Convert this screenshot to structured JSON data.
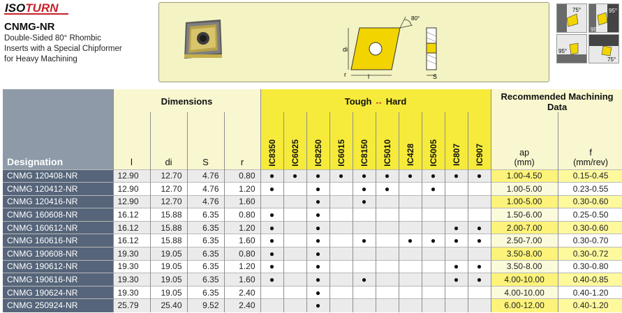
{
  "brand": "ISOTURN",
  "product": {
    "code": "CNMG-NR",
    "description_lines": [
      "Double-Sided 80° Rhombic",
      "Inserts with a Special Chipformer",
      "for Heavy Machining"
    ]
  },
  "diagram": {
    "angle_label": "80°",
    "dim_di": "di",
    "dim_l": "l",
    "dim_r": "r",
    "dim_s": "S"
  },
  "applications": [
    "75°",
    "95°",
    "95°",
    "95°",
    "75°"
  ],
  "table": {
    "designation_header": "Designation",
    "dimensions_title": "Dimensions",
    "dimension_headers": [
      "l",
      "di",
      "S",
      "r"
    ],
    "grade_title_left": "Tough",
    "grade_title_arrow": "↔",
    "grade_title_right": "Hard",
    "grades": [
      "IC8350",
      "IC6025",
      "IC8250",
      "IC6015",
      "IC8150",
      "IC5010",
      "IC428",
      "IC5005",
      "IC807",
      "IC907"
    ],
    "rec_title": "Recommended Machining Data",
    "rec_ap_label": "ap",
    "rec_ap_unit": "(mm)",
    "rec_f_label": "f",
    "rec_f_unit": "(mm/rev)",
    "rows": [
      {
        "designation": "CNMG 120408-NR",
        "l": "12.90",
        "di": "12.70",
        "s": "4.76",
        "r": "0.80",
        "grades": [
          "●",
          "●",
          "●",
          "●",
          "●",
          "●",
          "●",
          "●",
          "●",
          "●"
        ],
        "ap": "1.00-4.50",
        "f": "0.15-0.45"
      },
      {
        "designation": "CNMG 120412-NR",
        "l": "12.90",
        "di": "12.70",
        "s": "4.76",
        "r": "1.20",
        "grades": [
          "●",
          "",
          "●",
          "",
          "●",
          "●",
          "",
          "●",
          "",
          ""
        ],
        "ap": "1.00-5.00",
        "f": "0.23-0.55"
      },
      {
        "designation": "CNMG 120416-NR",
        "l": "12.90",
        "di": "12.70",
        "s": "4.76",
        "r": "1.60",
        "grades": [
          "",
          "",
          "●",
          "",
          "●",
          "",
          "",
          "",
          "",
          ""
        ],
        "ap": "1.00-5.00",
        "f": "0.30-0.60"
      },
      {
        "designation": "CNMG 160608-NR",
        "l": "16.12",
        "di": "15.88",
        "s": "6.35",
        "r": "0.80",
        "grades": [
          "●",
          "",
          "●",
          "",
          "",
          "",
          "",
          "",
          "",
          ""
        ],
        "ap": "1.50-6.00",
        "f": "0.25-0.50"
      },
      {
        "designation": "CNMG 160612-NR",
        "l": "16.12",
        "di": "15.88",
        "s": "6.35",
        "r": "1.20",
        "grades": [
          "●",
          "",
          "●",
          "",
          "",
          "",
          "",
          "",
          "●",
          "●"
        ],
        "ap": "2.00-7.00",
        "f": "0.30-0.60"
      },
      {
        "designation": "CNMG 160616-NR",
        "l": "16.12",
        "di": "15.88",
        "s": "6.35",
        "r": "1.60",
        "grades": [
          "●",
          "",
          "●",
          "",
          "●",
          "",
          "●",
          "●",
          "●",
          "●"
        ],
        "ap": "2.50-7.00",
        "f": "0.30-0.70"
      },
      {
        "designation": "CNMG 190608-NR",
        "l": "19.30",
        "di": "19.05",
        "s": "6.35",
        "r": "0.80",
        "grades": [
          "●",
          "",
          "●",
          "",
          "",
          "",
          "",
          "",
          "",
          ""
        ],
        "ap": "3.50-8.00",
        "f": "0.30-0.72"
      },
      {
        "designation": "CNMG 190612-NR",
        "l": "19.30",
        "di": "19.05",
        "s": "6.35",
        "r": "1.20",
        "grades": [
          "●",
          "",
          "●",
          "",
          "",
          "",
          "",
          "",
          "●",
          "●"
        ],
        "ap": "3.50-8.00",
        "f": "0.30-0.80"
      },
      {
        "designation": "CNMG 190616-NR",
        "l": "19.30",
        "di": "19.05",
        "s": "6.35",
        "r": "1.60",
        "grades": [
          "●",
          "",
          "●",
          "",
          "●",
          "",
          "",
          "",
          "●",
          "●"
        ],
        "ap": "4.00-10.00",
        "f": "0.40-0.85"
      },
      {
        "designation": "CNMG 190624-NR",
        "l": "19.30",
        "di": "19.05",
        "s": "6.35",
        "r": "2.40",
        "grades": [
          "",
          "",
          "●",
          "",
          "",
          "",
          "",
          "",
          "",
          ""
        ],
        "ap": "4.00-10.00",
        "f": "0.40-1.20"
      },
      {
        "designation": "CNMG 250924-NR",
        "l": "25.79",
        "di": "25.40",
        "s": "9.52",
        "r": "2.40",
        "grades": [
          "",
          "",
          "●",
          "",
          "",
          "",
          "",
          "",
          "",
          ""
        ],
        "ap": "6.00-12.00",
        "f": "0.40-1.20"
      }
    ]
  }
}
